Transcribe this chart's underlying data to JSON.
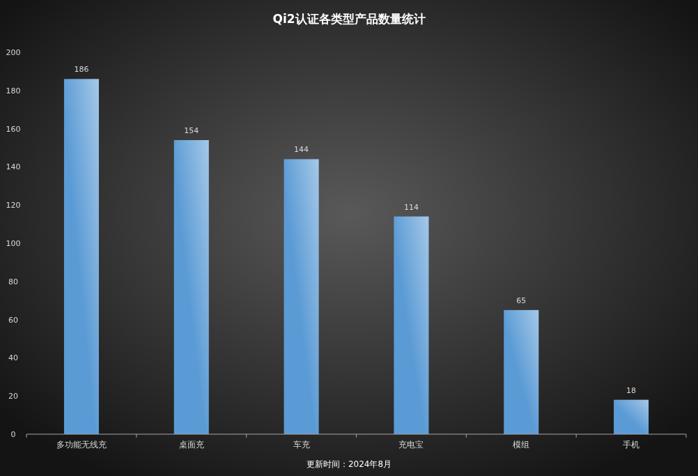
{
  "chart_data": {
    "type": "bar",
    "title": "Qi2认证各类型产品数量统计",
    "categories": [
      "多功能无线充",
      "桌面充",
      "车充",
      "充电宝",
      "模组",
      "手机"
    ],
    "values": [
      186,
      154,
      144,
      114,
      65,
      18
    ],
    "color": "#5b9bd5",
    "ylim": [
      0,
      200
    ],
    "yticks": [
      0,
      20,
      40,
      60,
      80,
      100,
      120,
      140,
      160,
      180,
      200
    ],
    "data_labels": true,
    "annotations": [
      "更新时间：2024年8月"
    ]
  }
}
